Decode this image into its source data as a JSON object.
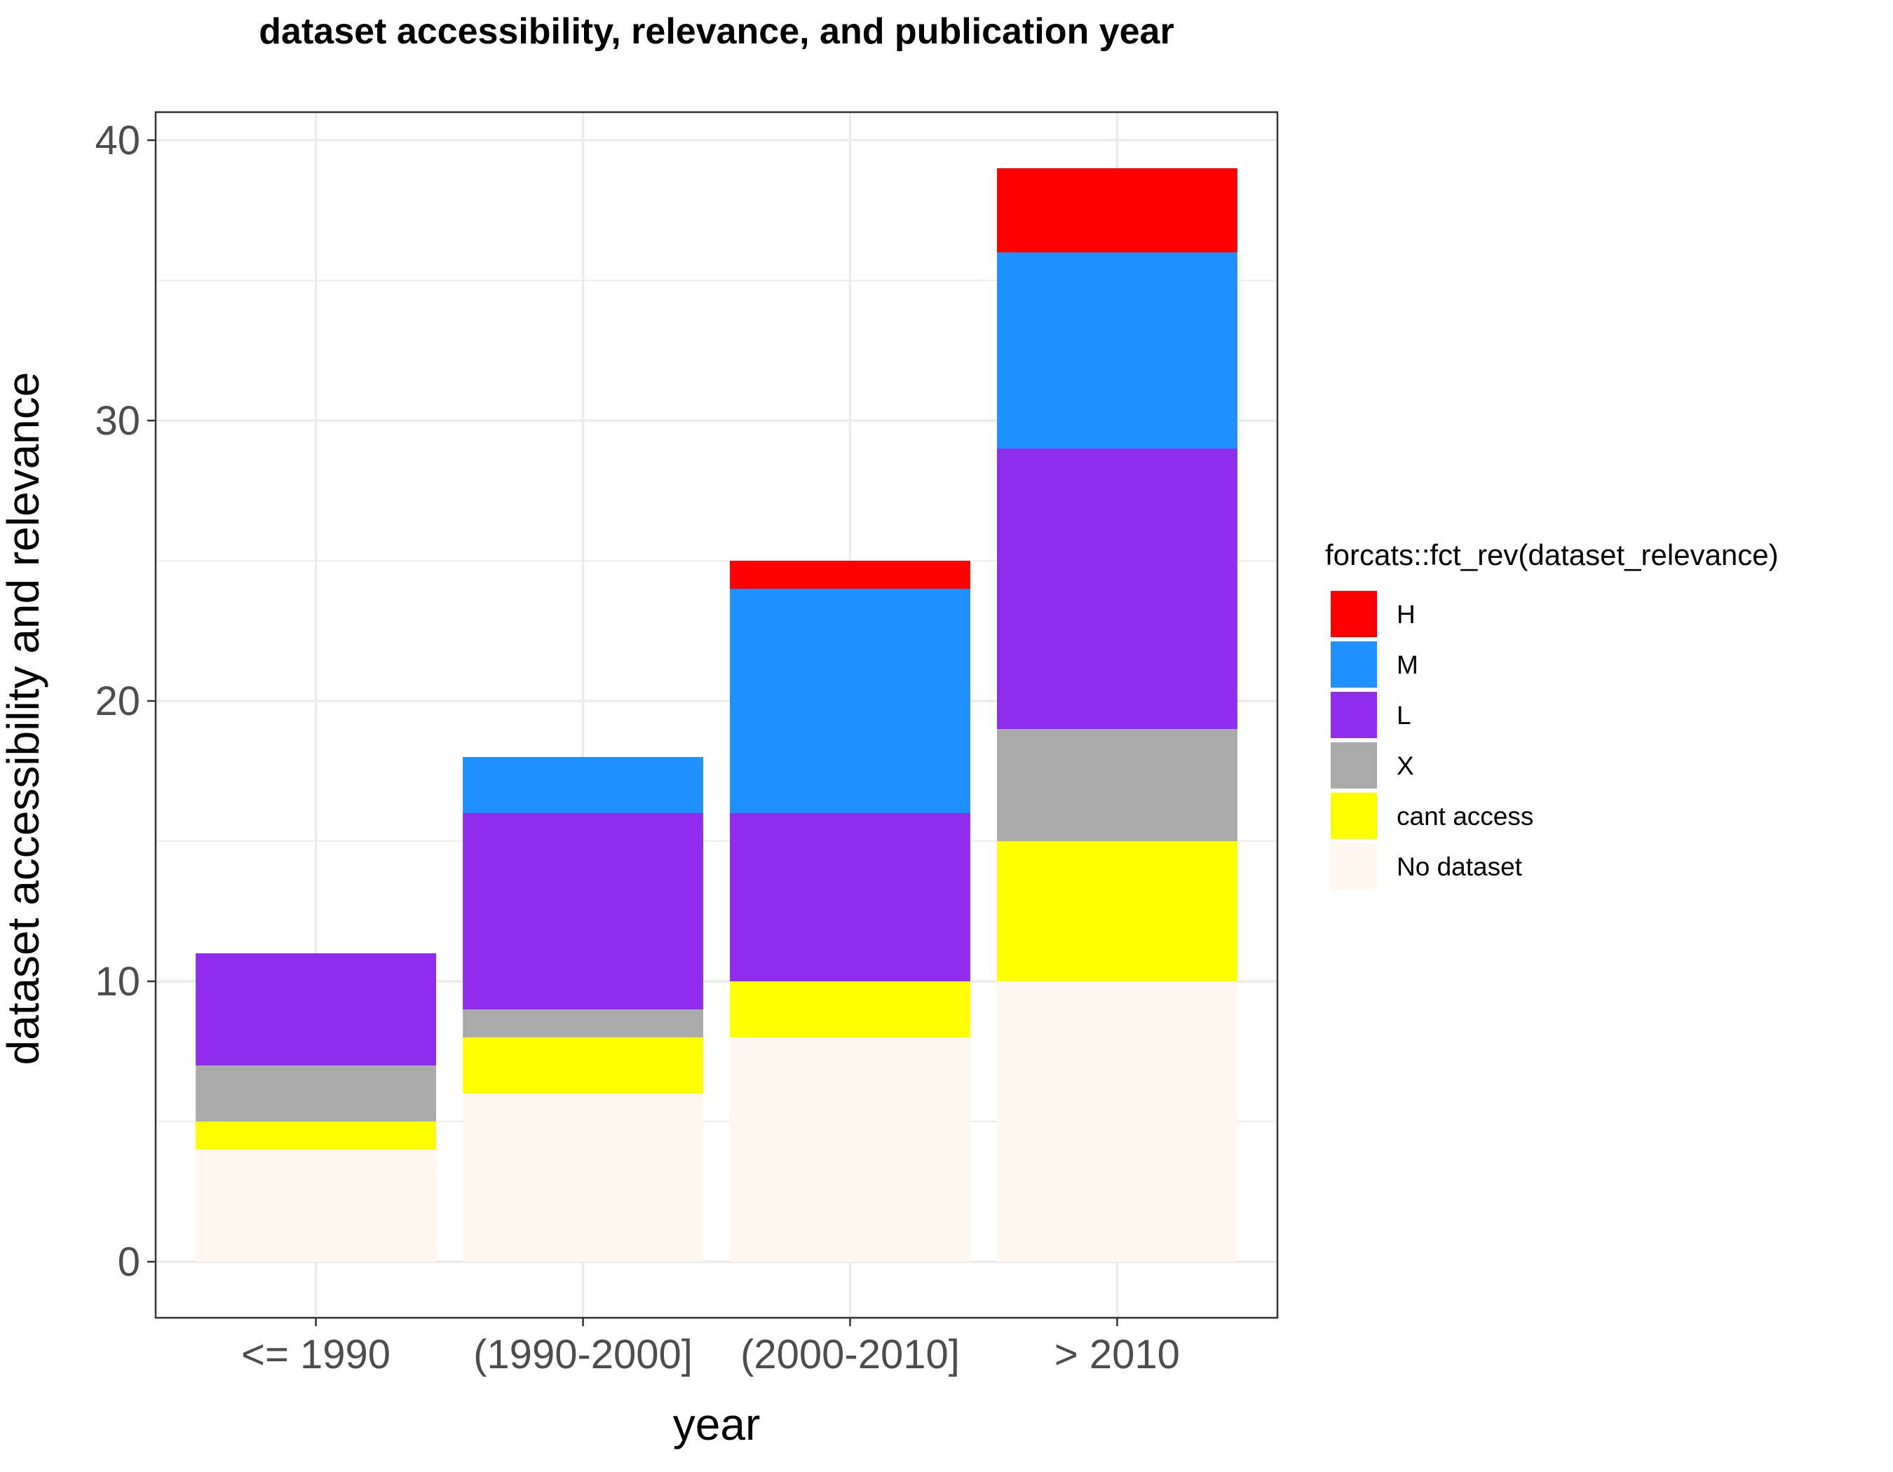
{
  "chart_data": {
    "type": "bar",
    "stacked": true,
    "title": "dataset accessibility, relevance, and publication year",
    "xlabel": "year",
    "ylabel": "dataset accessibility and relevance",
    "categories": [
      "<= 1990",
      "(1990-2000]",
      "(2000-2010]",
      "> 2010"
    ],
    "ylim": [
      -2,
      41
    ],
    "yticks": [
      0,
      10,
      20,
      30,
      40
    ],
    "grid": true,
    "legend": {
      "title": "forcats::fct_rev(dataset_relevance)",
      "position": "right"
    },
    "series": [
      {
        "name": "No dataset",
        "color": "#FFF8EE",
        "values": [
          4,
          6,
          8,
          10
        ]
      },
      {
        "name": "cant access",
        "color": "#FFFF00",
        "values": [
          1,
          2,
          2,
          5
        ]
      },
      {
        "name": "X",
        "color": "#AAAAAA",
        "values": [
          2,
          1,
          0,
          4
        ]
      },
      {
        "name": "L",
        "color": "#912CEE",
        "values": [
          4,
          7,
          6,
          10
        ]
      },
      {
        "name": "M",
        "color": "#1E90FF",
        "values": [
          0,
          2,
          8,
          7
        ]
      },
      {
        "name": "H",
        "color": "#FF0000",
        "values": [
          0,
          0,
          1,
          3
        ]
      }
    ]
  }
}
